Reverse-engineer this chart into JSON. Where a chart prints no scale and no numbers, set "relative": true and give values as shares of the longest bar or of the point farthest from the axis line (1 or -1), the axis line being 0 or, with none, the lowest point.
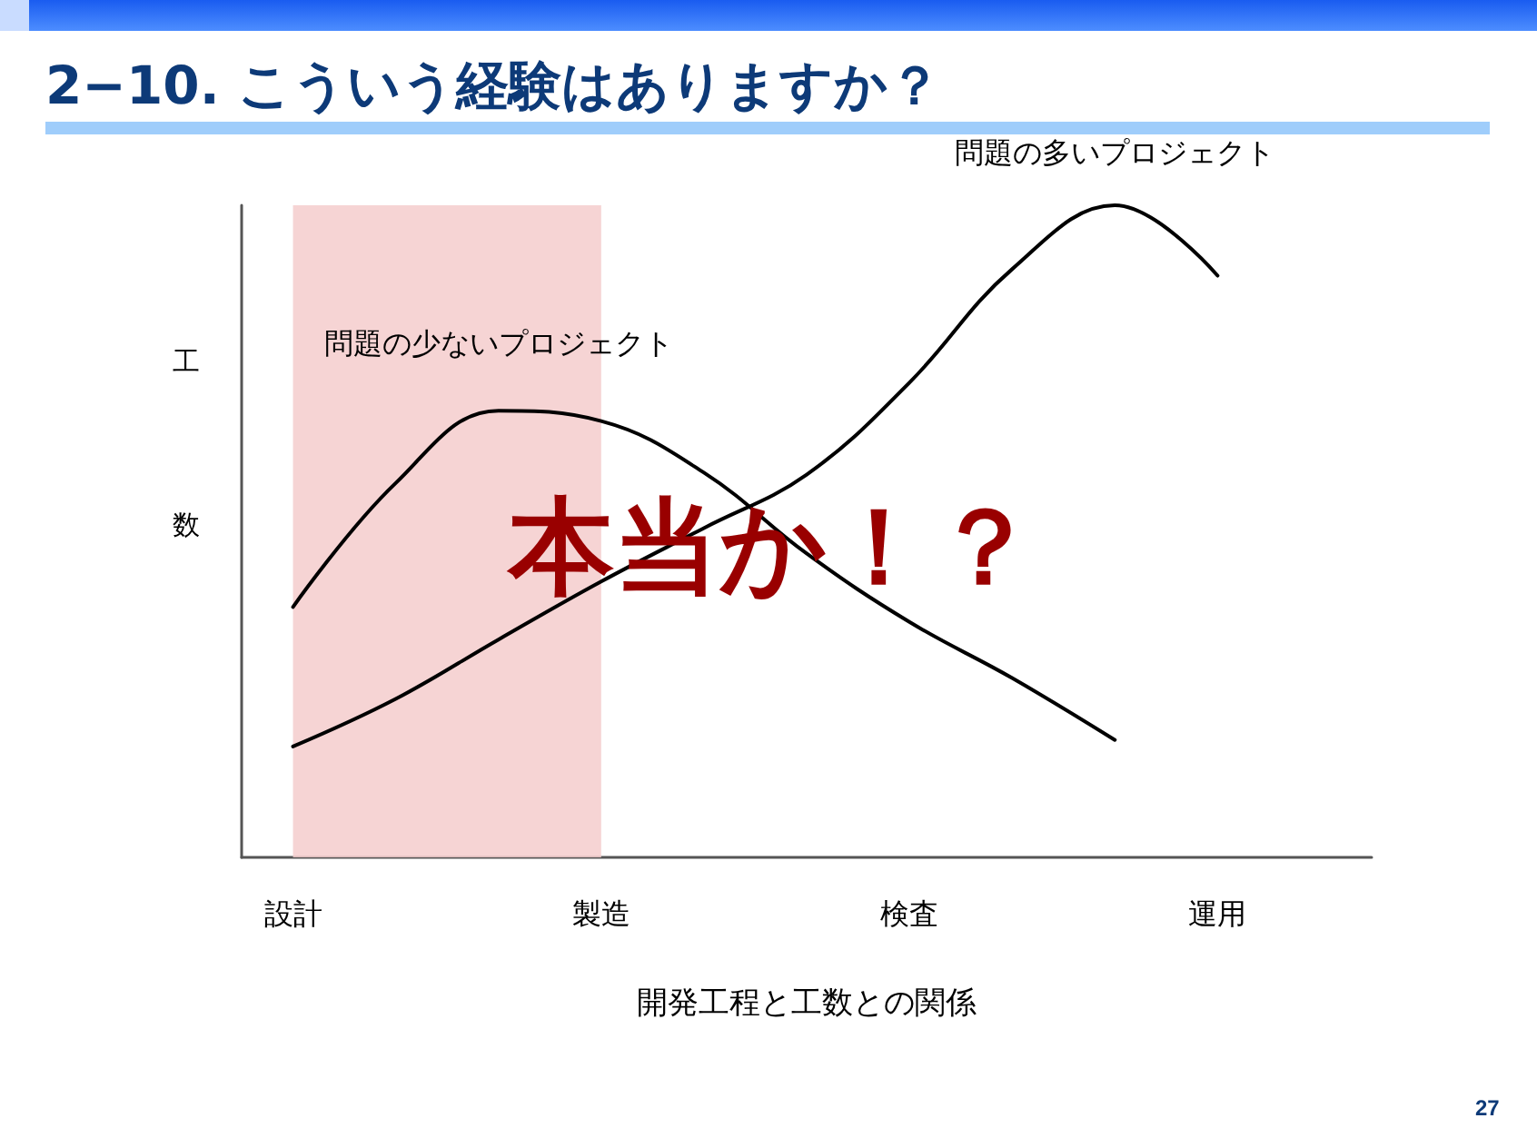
{
  "chart_data": {
    "type": "line",
    "title": "2−10. こういう経験はありますか？",
    "xlabel": "開発工程と工数との関係",
    "ylabel": "工数",
    "categories": [
      "設計",
      null,
      null,
      "製造",
      null,
      null,
      "検査",
      null,
      null,
      "運用",
      null
    ],
    "relative": true,
    "marker": "none",
    "line_style": "solid",
    "grid": false,
    "legend": false,
    "series": [
      {
        "name": "問題の少ないプロジェクト",
        "color": "#000000",
        "values": [
          0.384,
          0.574,
          0.685,
          0.669,
          0.59,
          0.466,
          0.361,
          0.275,
          0.18,
          null,
          null
        ]
      },
      {
        "name": "問題の多いプロジェクト",
        "color": "#000000",
        "values": [
          0.17,
          0.243,
          0.334,
          0.423,
          0.505,
          0.587,
          0.728,
          0.902,
          1.0,
          0.892,
          null
        ]
      }
    ],
    "bands": [
      {
        "axis": "x",
        "from": "設計",
        "to": "製造",
        "color": "#f4cccc"
      }
    ],
    "annotations": [
      "本当か！？",
      "27"
    ]
  }
}
